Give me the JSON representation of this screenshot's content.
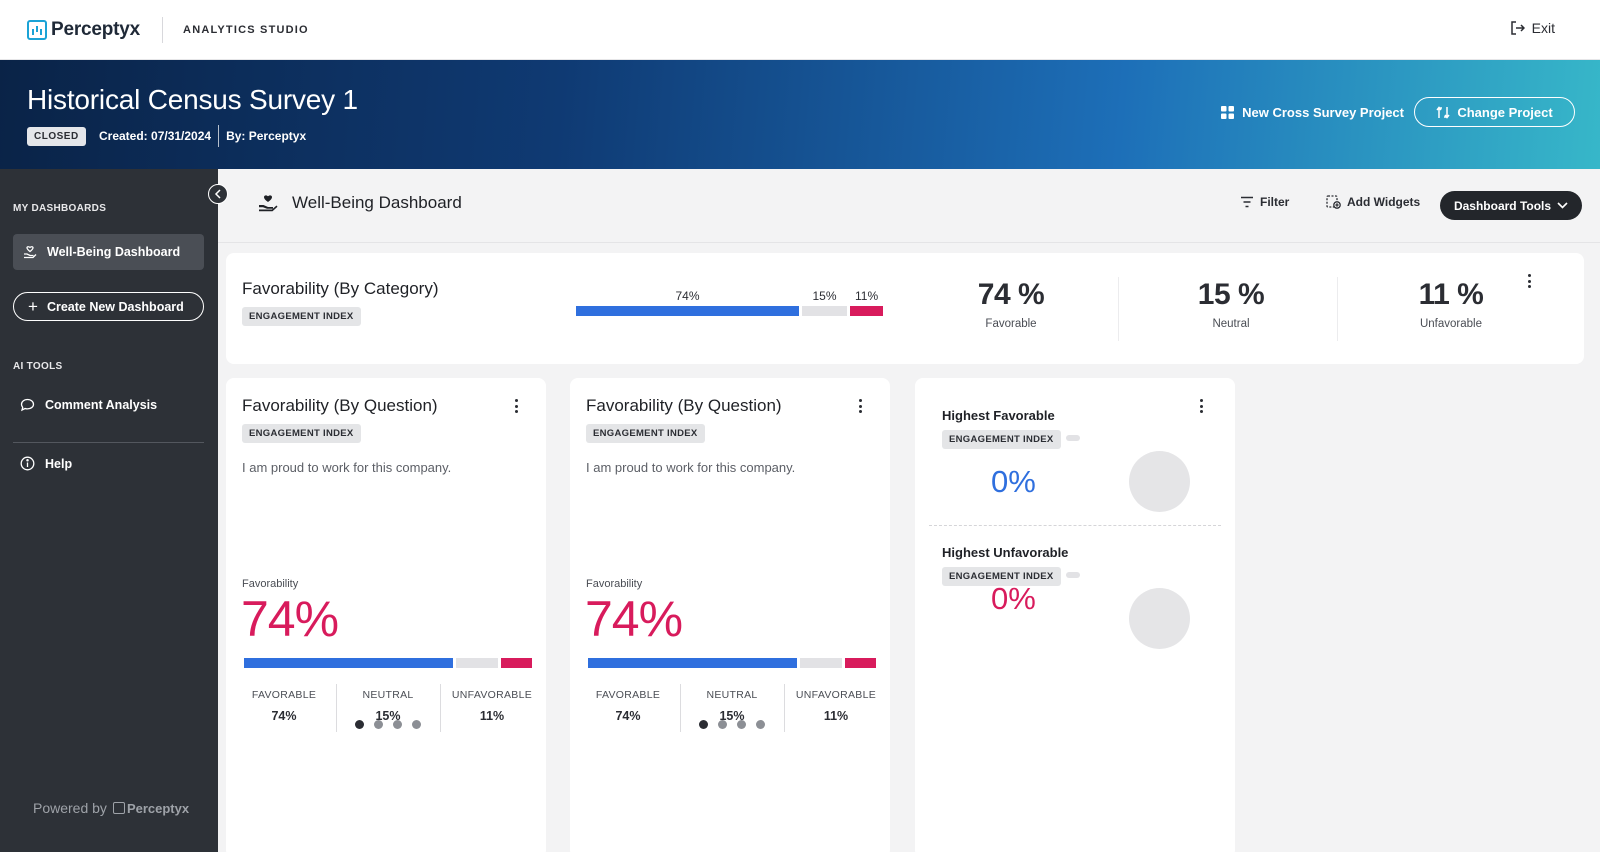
{
  "topbar": {
    "brand": "Perceptyx",
    "product": "ANALYTICS STUDIO",
    "exit_label": "Exit"
  },
  "survey": {
    "title": "Historical Census Survey 1",
    "status": "CLOSED",
    "created": "Created: 07/31/2024",
    "by": "By: Perceptyx",
    "new_cross_label": "New Cross Survey Project",
    "change_project_label": "Change Project"
  },
  "sidebar": {
    "my_dashboards_heading": "MY DASHBOARDS",
    "active_dashboard": "Well-Being Dashboard",
    "create_label": "Create New Dashboard",
    "ai_tools_heading": "AI TOOLS",
    "comment_analysis": "Comment Analysis",
    "help": "Help",
    "powered_by": "Powered by",
    "powered_brand": "Perceptyx"
  },
  "dashboard": {
    "title": "Well-Being Dashboard",
    "filter_label": "Filter",
    "add_widgets_label": "Add Widgets",
    "tools_label": "Dashboard Tools"
  },
  "category_card": {
    "title": "Favorability (By Category)",
    "tag": "ENGAGEMENT INDEX",
    "favorable_pct": 74,
    "neutral_pct": 15,
    "unfavorable_pct": 11,
    "bar_labels": {
      "favorable": "74%",
      "neutral": "15%",
      "unfavorable": "11%"
    },
    "stats": [
      {
        "value": "74 %",
        "label": "Favorable"
      },
      {
        "value": "15 %",
        "label": "Neutral"
      },
      {
        "value": "11 %",
        "label": "Unfavorable"
      }
    ]
  },
  "question_cards": [
    {
      "title": "Favorability (By Question)",
      "tag": "ENGAGEMENT INDEX",
      "question": "I am proud to work for this company.",
      "fav_label": "Favorability",
      "fav_big": "74%",
      "favorable_pct": 74,
      "neutral_pct": 15,
      "unfavorable_pct": 11,
      "cols": [
        {
          "h": "FAVORABLE",
          "v": "74%"
        },
        {
          "h": "NEUTRAL",
          "v": "15%"
        },
        {
          "h": "UNFAVORABLE",
          "v": "11%"
        }
      ]
    },
    {
      "title": "Favorability (By Question)",
      "tag": "ENGAGEMENT INDEX",
      "question": "I am proud to work for this company.",
      "fav_label": "Favorability",
      "fav_big": "74%",
      "favorable_pct": 74,
      "neutral_pct": 15,
      "unfavorable_pct": 11,
      "cols": [
        {
          "h": "FAVORABLE",
          "v": "74%"
        },
        {
          "h": "NEUTRAL",
          "v": "15%"
        },
        {
          "h": "UNFAVORABLE",
          "v": "11%"
        }
      ]
    }
  ],
  "highest_card": {
    "fav_title": "Highest Favorable",
    "fav_tag": "ENGAGEMENT INDEX",
    "fav_value": "0%",
    "unfav_title": "Highest Unfavorable",
    "unfav_tag": "ENGAGEMENT INDEX",
    "unfav_value": "0%"
  },
  "colors": {
    "favorable": "#2f6fde",
    "neutral": "#e2e2e5",
    "unfavorable": "#d81b5c",
    "brand": "#1ba3d6"
  },
  "icons": [
    "logo-icon",
    "exit-icon",
    "grid-icon",
    "swap-icon",
    "collapse-chevron-icon",
    "hand-heart-icon",
    "plus-icon",
    "chat-bubble-icon",
    "info-icon",
    "filter-icon",
    "add-widget-icon",
    "chevron-down-icon",
    "kebab-icon"
  ]
}
